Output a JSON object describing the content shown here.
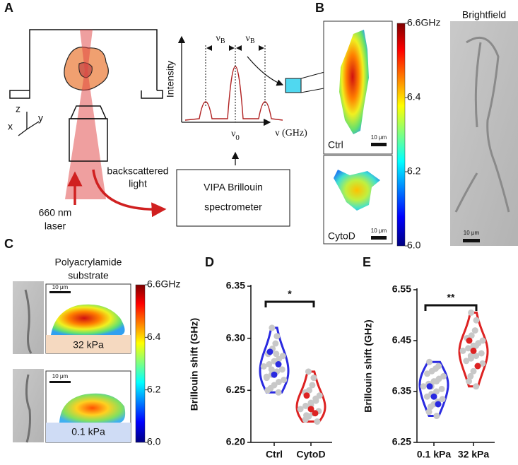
{
  "panels": {
    "A": {
      "label": "A",
      "axes": {
        "z": "z",
        "y": "y",
        "x": "x"
      },
      "spectrum": {
        "y_label": "Intensity",
        "x_label": "ν (GHz)",
        "center": {
          "symbol": "ν",
          "subscript": "0"
        },
        "shifts": [
          {
            "symbol": "ν",
            "subscript": "B"
          },
          {
            "symbol": "ν",
            "subscript": "B"
          }
        ]
      },
      "backscatter": [
        "backscattered",
        "light"
      ],
      "spectrometer": [
        "VIPA Brillouin",
        "spectrometer"
      ],
      "laser": [
        "660 nm",
        "laser"
      ]
    },
    "B": {
      "label": "B",
      "images": [
        {
          "label": "Ctrl",
          "scale_bar": "10 μm"
        },
        {
          "label": "CytoD",
          "scale_bar": "10 μm"
        }
      ],
      "colorbar": {
        "ticks": [
          {
            "value": 6.6,
            "label": "6.6GHz"
          },
          6.4,
          6.2,
          {
            "value": 6,
            "label": "6.0"
          }
        ]
      },
      "brightfield": {
        "title": "Brightfield",
        "scale_bar": "10 μm"
      }
    },
    "C": {
      "label": "C",
      "title": [
        "Polyacrylamide",
        "substrate"
      ],
      "images": [
        {
          "scale_bar": "10 μm",
          "substrate": "32 kPa"
        },
        {
          "scale_bar": "10 μm",
          "substrate": "0.1 kPa"
        }
      ],
      "colorbar": {
        "ticks": [
          {
            "value": 6.6,
            "label": "6.6GHz"
          },
          6.4,
          6.2,
          {
            "value": 6,
            "label": "6.0"
          }
        ]
      }
    }
  },
  "chart_data": [
    {
      "type": "violin",
      "label": "D",
      "y_label": "Brillouin shift  (GHz)",
      "annotation": "*",
      "categories": [
        "Ctrl",
        "CytoD"
      ],
      "ylim": [
        6.2,
        6.35
      ],
      "yticks": [
        {
          "value": 6.2,
          "label": "6.20"
        },
        6.25,
        {
          "value": 6.3,
          "label": "6.30"
        },
        6.35
      ],
      "point_color": "#c8c8c8",
      "series": [
        {
          "color": "#2a2ae0",
          "values": [
            6.31,
            6.302,
            6.295,
            6.29,
            6.285,
            6.283,
            6.28,
            6.278,
            6.275,
            6.273,
            6.27,
            6.268,
            6.265,
            6.263,
            6.26,
            6.258,
            6.255,
            6.252,
            6.25,
            6.248,
            6.285,
            6.27,
            6.262
          ],
          "means": [
            6.287,
            6.265,
            6.275
          ]
        },
        {
          "color": "#dd2222",
          "values": [
            6.268,
            6.262,
            6.255,
            6.25,
            6.248,
            6.245,
            6.24,
            6.238,
            6.235,
            6.232,
            6.23,
            6.228,
            6.225,
            6.222,
            6.22,
            6.242,
            6.236,
            6.226
          ],
          "means": [
            6.245,
            6.232,
            6.228
          ]
        }
      ]
    },
    {
      "type": "violin",
      "label": "E",
      "y_label": "Brillouin shift  (GHz)",
      "annotation": "**",
      "categories": [
        "0.1 kPa",
        "32 kPa"
      ],
      "ylim": [
        6.25,
        6.55
      ],
      "yticks": [
        6.25,
        6.35,
        6.45,
        6.55
      ],
      "point_color": "#c8c8c8",
      "series": [
        {
          "color": "#2a2ae0",
          "values": [
            6.408,
            6.4,
            6.395,
            6.39,
            6.385,
            6.38,
            6.375,
            6.37,
            6.365,
            6.36,
            6.355,
            6.35,
            6.345,
            6.34,
            6.335,
            6.33,
            6.325,
            6.32,
            6.31,
            6.302,
            6.37,
            6.36
          ],
          "means": [
            6.36,
            6.34,
            6.325
          ]
        },
        {
          "color": "#dd2222",
          "values": [
            6.505,
            6.49,
            6.47,
            6.46,
            6.455,
            6.45,
            6.445,
            6.44,
            6.435,
            6.43,
            6.425,
            6.42,
            6.415,
            6.41,
            6.405,
            6.4,
            6.39,
            6.38,
            6.37,
            6.36,
            6.44,
            6.42
          ],
          "means": [
            6.45,
            6.43,
            6.4
          ]
        }
      ]
    }
  ]
}
